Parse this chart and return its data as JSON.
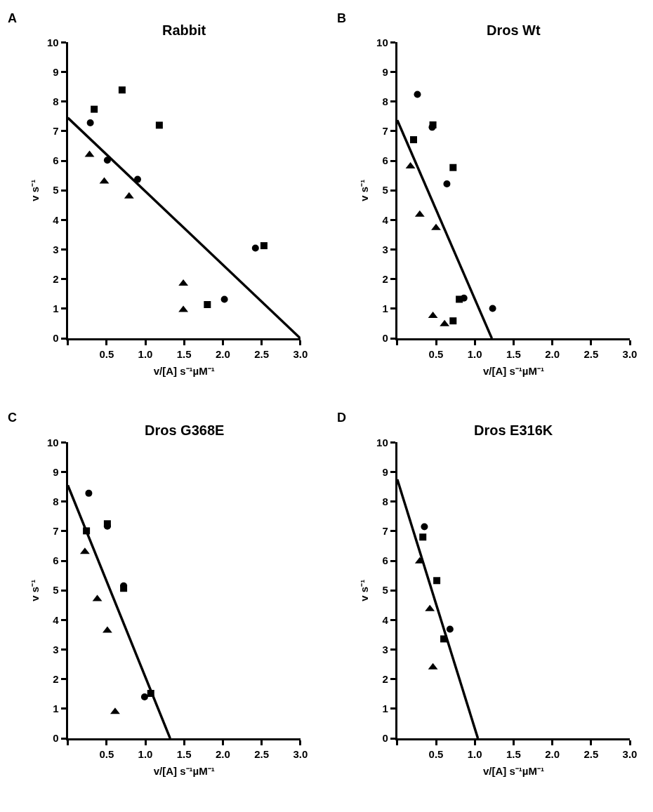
{
  "chart_data": [
    {
      "type": "scatter",
      "title": "Rabbit",
      "xlabel": "v/[A] s⁻¹µM⁻¹",
      "ylabel": "v s⁻¹",
      "annotations": [
        "A"
      ],
      "xlim": [
        0,
        3.0
      ],
      "ylim": [
        0,
        10
      ],
      "grid": false,
      "xticks": [
        {
          "value": 0,
          "label": null
        },
        0.5,
        {
          "value": 1,
          "label": "1.0"
        },
        1.5,
        {
          "value": 2,
          "label": "2.0"
        },
        2.5,
        {
          "value": 3,
          "label": "3.0"
        }
      ],
      "yticks": [
        0,
        1,
        2,
        3,
        4,
        5,
        6,
        7,
        8,
        9,
        10
      ],
      "series": [
        {
          "type": "scatter",
          "marker": "circle",
          "color": "#000000",
          "x": [
            0.29,
            0.51,
            0.9,
            2.42,
            2.02
          ],
          "values": [
            7.28,
            6.02,
            5.37,
            3.05,
            1.32
          ]
        },
        {
          "type": "scatter",
          "marker": "square",
          "color": "#000000",
          "x": [
            0.34,
            0.7,
            1.18,
            2.53,
            1.8
          ],
          "values": [
            7.74,
            8.39,
            7.2,
            3.13,
            1.14
          ]
        },
        {
          "type": "scatter",
          "marker": "triangle",
          "color": "#000000",
          "x": [
            0.28,
            0.47,
            0.79,
            1.49,
            1.49
          ],
          "values": [
            6.2,
            5.3,
            4.8,
            1.85,
            0.96
          ]
        },
        {
          "type": "line",
          "marker": "none",
          "color": "#000000",
          "x": [
            0,
            3.0
          ],
          "values": [
            7.45,
            0
          ]
        }
      ]
    },
    {
      "type": "scatter",
      "title": "Dros Wt",
      "xlabel": "v/[A] s⁻¹µM⁻¹",
      "ylabel": "v s⁻¹",
      "annotations": [
        "B"
      ],
      "xlim": [
        0,
        3.0
      ],
      "ylim": [
        0,
        10
      ],
      "grid": false,
      "xticks": [
        {
          "value": 0,
          "label": null
        },
        0.5,
        {
          "value": 1,
          "label": "1.0"
        },
        1.5,
        {
          "value": 2,
          "label": "2.0"
        },
        2.5,
        {
          "value": 3,
          "label": "3.0"
        }
      ],
      "yticks": [
        0,
        1,
        2,
        3,
        4,
        5,
        6,
        7,
        8,
        9,
        10
      ],
      "series": [
        {
          "type": "scatter",
          "marker": "circle",
          "color": "#000000",
          "x": [
            0.26,
            0.45,
            0.64,
            0.86,
            1.23
          ],
          "values": [
            8.24,
            7.13,
            5.22,
            1.36,
            1.01
          ]
        },
        {
          "type": "scatter",
          "marker": "square",
          "color": "#000000",
          "x": [
            0.21,
            0.46,
            0.72,
            0.8,
            0.72
          ],
          "values": [
            6.71,
            7.21,
            5.77,
            1.32,
            0.59
          ]
        },
        {
          "type": "scatter",
          "marker": "triangle",
          "color": "#000000",
          "x": [
            0.17,
            0.29,
            0.5,
            0.46,
            0.61
          ],
          "values": [
            5.81,
            4.18,
            3.73,
            0.76,
            0.48
          ]
        },
        {
          "type": "line",
          "marker": "none",
          "color": "#000000",
          "x": [
            0,
            1.22
          ],
          "values": [
            7.37,
            0
          ]
        }
      ]
    },
    {
      "type": "scatter",
      "title": "Dros G368E",
      "xlabel": "v/[A] s⁻¹µM⁻¹",
      "ylabel": "v s⁻¹",
      "annotations": [
        "C"
      ],
      "xlim": [
        0,
        3.0
      ],
      "ylim": [
        0,
        10
      ],
      "grid": false,
      "xticks": [
        {
          "value": 0,
          "label": null
        },
        0.5,
        {
          "value": 1,
          "label": "1.0"
        },
        1.5,
        {
          "value": 2,
          "label": "2.0"
        },
        2.5,
        {
          "value": 3,
          "label": "3.0"
        }
      ],
      "yticks": [
        0,
        1,
        2,
        3,
        4,
        5,
        6,
        7,
        8,
        9,
        10
      ],
      "series": [
        {
          "type": "scatter",
          "marker": "circle",
          "color": "#000000",
          "x": [
            0.27,
            0.51,
            0.72,
            0.99
          ],
          "values": [
            8.28,
            7.17,
            5.15,
            1.4
          ]
        },
        {
          "type": "scatter",
          "marker": "square",
          "color": "#000000",
          "x": [
            0.24,
            0.51,
            0.72,
            1.07
          ],
          "values": [
            7.01,
            7.25,
            5.07,
            1.52
          ]
        },
        {
          "type": "scatter",
          "marker": "triangle",
          "color": "#000000",
          "x": [
            0.22,
            0.38,
            0.51,
            0.61
          ],
          "values": [
            6.3,
            4.71,
            3.64,
            0.9
          ]
        },
        {
          "type": "line",
          "marker": "none",
          "color": "#000000",
          "x": [
            0,
            1.32
          ],
          "values": [
            8.55,
            0
          ]
        }
      ]
    },
    {
      "type": "scatter",
      "title": "Dros E316K",
      "xlabel": "v/[A] s⁻¹µM⁻¹",
      "ylabel": "v s⁻¹",
      "annotations": [
        "D"
      ],
      "xlim": [
        0,
        3.0
      ],
      "ylim": [
        0,
        10
      ],
      "grid": false,
      "xticks": [
        {
          "value": 0,
          "label": null
        },
        0.5,
        {
          "value": 1,
          "label": "1.0"
        },
        1.5,
        {
          "value": 2,
          "label": "2.0"
        },
        2.5,
        {
          "value": 3,
          "label": "3.0"
        }
      ],
      "yticks": [
        0,
        1,
        2,
        3,
        4,
        5,
        6,
        7,
        8,
        9,
        10
      ],
      "series": [
        {
          "type": "scatter",
          "marker": "circle",
          "color": "#000000",
          "x": [
            0.35,
            0.68
          ],
          "values": [
            7.15,
            3.69
          ]
        },
        {
          "type": "scatter",
          "marker": "square",
          "color": "#000000",
          "x": [
            0.33,
            0.51,
            0.6
          ],
          "values": [
            6.8,
            5.33,
            3.36
          ]
        },
        {
          "type": "scatter",
          "marker": "triangle",
          "color": "#000000",
          "x": [
            0.29,
            0.42,
            0.46
          ],
          "values": [
            5.98,
            4.37,
            2.4
          ]
        },
        {
          "type": "line",
          "marker": "none",
          "color": "#000000",
          "x": [
            0,
            1.04
          ],
          "values": [
            8.75,
            0
          ]
        }
      ]
    }
  ]
}
